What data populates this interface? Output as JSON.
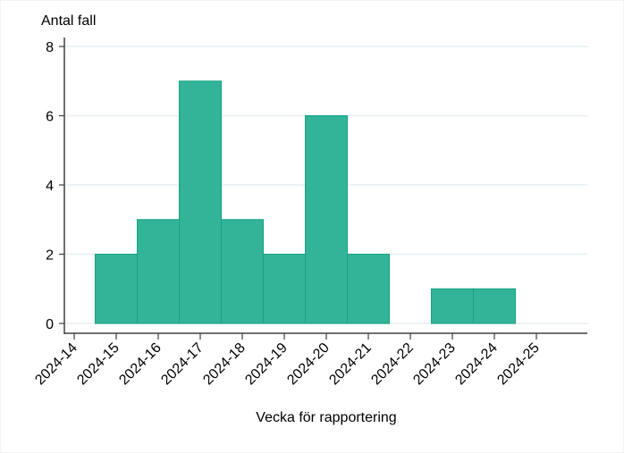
{
  "chart_data": {
    "type": "bar",
    "title": "",
    "ylabel": "Antal fall",
    "xlabel": "Vecka för rapportering",
    "categories": [
      "2024-14",
      "2024-15",
      "2024-16",
      "2024-17",
      "2024-18",
      "2024-19",
      "2024-20",
      "2024-21",
      "2024-22",
      "2024-23",
      "2024-24",
      "2024-25"
    ],
    "values": [
      0,
      2,
      3,
      7,
      3,
      2,
      6,
      2,
      0,
      1,
      1,
      0
    ],
    "ylim": [
      0,
      8
    ],
    "yticks": [
      0,
      2,
      4,
      6,
      8
    ],
    "grid": true,
    "legend": null,
    "colors": {
      "bar_fill": "#33b398",
      "bar_edge": "#14a382",
      "grid": "#edf2f5",
      "axis": "#404040"
    }
  }
}
